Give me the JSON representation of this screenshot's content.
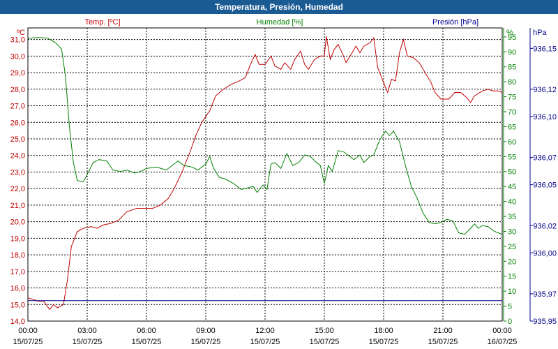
{
  "window": {
    "title": "Temperatura, Presión, Humedad"
  },
  "colors": {
    "temp": "#c00000",
    "humidity": "#008000",
    "pressure": "#00008b",
    "grid": "#000000",
    "title_bg": "#1b5b94"
  },
  "chart_data": {
    "type": "line",
    "title": "Temperatura, Presión, Humedad",
    "grid": true,
    "axes": {
      "temp": {
        "label": "Temp. [ºC]",
        "unit": "ºC",
        "ylim": [
          14.0,
          31.7
        ],
        "ticks": [
          "14,0",
          "15,0",
          "16,0",
          "17,0",
          "18,0",
          "19,0",
          "20,0",
          "21,0",
          "22,0",
          "23,0",
          "24,0",
          "25,0",
          "26,0",
          "27,0",
          "28,0",
          "29,0",
          "30,0",
          "31,0"
        ]
      },
      "humidity": {
        "label": "Humedad [%]",
        "unit": "%",
        "ylim": [
          0,
          98
        ],
        "ticks": [
          "0",
          "5",
          "10",
          "15",
          "20",
          "25",
          "30",
          "35",
          "40",
          "45",
          "50",
          "55",
          "60",
          "65",
          "70",
          "75",
          "80",
          "85",
          "90",
          "95"
        ]
      },
      "pressure": {
        "label": "Presión [hPa]",
        "unit": "hPa",
        "ylim": [
          935.95,
          936.165
        ],
        "ticks": [
          "935,95",
          "935,97",
          "936,00",
          "936,02",
          "936,05",
          "936,07",
          "936,10",
          "936,12",
          "936,15"
        ]
      }
    },
    "x_ticks": [
      {
        "time": "00:00",
        "date": "15/07/25"
      },
      {
        "time": "03:00",
        "date": "15/07/25"
      },
      {
        "time": "06:00",
        "date": "15/07/25"
      },
      {
        "time": "09:00",
        "date": "15/07/25"
      },
      {
        "time": "12:00",
        "date": "15/07/25"
      },
      {
        "time": "15:00",
        "date": "15/07/25"
      },
      {
        "time": "18:00",
        "date": "15/07/25"
      },
      {
        "time": "21:00",
        "date": "15/07/25"
      },
      {
        "time": "00:00",
        "date": "16/07/25"
      }
    ],
    "series": [
      {
        "name": "Temp. [ºC]",
        "axis": "temp",
        "points": [
          [
            0,
            15.4
          ],
          [
            0.3,
            15.3
          ],
          [
            0.5,
            15.2
          ],
          [
            0.8,
            15.2
          ],
          [
            1.1,
            14.7
          ],
          [
            1.3,
            15.0
          ],
          [
            1.5,
            14.8
          ],
          [
            1.8,
            15.0
          ],
          [
            2.0,
            16.5
          ],
          [
            2.2,
            18.5
          ],
          [
            2.5,
            19.4
          ],
          [
            2.8,
            19.6
          ],
          [
            3.2,
            19.7
          ],
          [
            3.5,
            19.6
          ],
          [
            3.8,
            19.8
          ],
          [
            4.2,
            19.9
          ],
          [
            4.6,
            20.1
          ],
          [
            5.0,
            20.6
          ],
          [
            5.5,
            20.8
          ],
          [
            6.0,
            20.8
          ],
          [
            6.3,
            20.8
          ],
          [
            6.7,
            21.0
          ],
          [
            7.1,
            21.4
          ],
          [
            7.4,
            22.0
          ],
          [
            7.8,
            23.0
          ],
          [
            8.2,
            24.2
          ],
          [
            8.5,
            25.2
          ],
          [
            8.8,
            26.0
          ],
          [
            9.2,
            26.7
          ],
          [
            9.5,
            27.6
          ],
          [
            9.9,
            28.0
          ],
          [
            10.3,
            28.3
          ],
          [
            10.7,
            28.5
          ],
          [
            11.0,
            28.7
          ],
          [
            11.3,
            29.6
          ],
          [
            11.5,
            30.1
          ],
          [
            11.7,
            29.5
          ],
          [
            12.0,
            29.5
          ],
          [
            12.3,
            30.0
          ],
          [
            12.5,
            29.4
          ],
          [
            12.8,
            29.2
          ],
          [
            13.0,
            29.6
          ],
          [
            13.3,
            29.2
          ],
          [
            13.5,
            29.8
          ],
          [
            13.8,
            30.3
          ],
          [
            14.0,
            29.5
          ],
          [
            14.2,
            29.2
          ],
          [
            14.5,
            29.8
          ],
          [
            14.8,
            30.0
          ],
          [
            15.0,
            30.0
          ],
          [
            15.1,
            31.2
          ],
          [
            15.3,
            29.8
          ],
          [
            15.5,
            30.4
          ],
          [
            15.7,
            30.7
          ],
          [
            15.9,
            30.2
          ],
          [
            16.1,
            29.6
          ],
          [
            16.4,
            30.2
          ],
          [
            16.6,
            30.6
          ],
          [
            16.8,
            30.2
          ],
          [
            17.0,
            30.6
          ],
          [
            17.3,
            30.8
          ],
          [
            17.5,
            31.1
          ],
          [
            17.7,
            29.3
          ],
          [
            18.0,
            28.4
          ],
          [
            18.2,
            27.8
          ],
          [
            18.4,
            28.6
          ],
          [
            18.6,
            28.5
          ],
          [
            18.8,
            30.2
          ],
          [
            19.0,
            31.0
          ],
          [
            19.2,
            30.0
          ],
          [
            19.5,
            29.9
          ],
          [
            19.8,
            29.6
          ],
          [
            20.1,
            29.0
          ],
          [
            20.4,
            28.4
          ],
          [
            20.6,
            27.8
          ],
          [
            20.9,
            27.4
          ],
          [
            21.3,
            27.4
          ],
          [
            21.6,
            27.8
          ],
          [
            21.9,
            27.8
          ],
          [
            22.2,
            27.5
          ],
          [
            22.4,
            27.2
          ],
          [
            22.6,
            27.6
          ],
          [
            23.0,
            27.9
          ],
          [
            23.3,
            28.0
          ],
          [
            23.5,
            27.9
          ],
          [
            23.8,
            27.9
          ],
          [
            24.0,
            27.8
          ]
        ]
      },
      {
        "name": "Humedad [%]",
        "axis": "humidity",
        "points": [
          [
            0,
            94.5
          ],
          [
            0.5,
            94.8
          ],
          [
            1.0,
            94.6
          ],
          [
            1.4,
            93.0
          ],
          [
            1.7,
            91.0
          ],
          [
            1.9,
            82.0
          ],
          [
            2.1,
            65.0
          ],
          [
            2.3,
            53.0
          ],
          [
            2.5,
            47.0
          ],
          [
            2.8,
            46.5
          ],
          [
            3.0,
            49.0
          ],
          [
            3.3,
            53.0
          ],
          [
            3.6,
            54.0
          ],
          [
            4.0,
            53.5
          ],
          [
            4.3,
            50.5
          ],
          [
            4.7,
            50.0
          ],
          [
            5.0,
            50.5
          ],
          [
            5.4,
            49.5
          ],
          [
            5.7,
            50.0
          ],
          [
            6.0,
            51.0
          ],
          [
            6.5,
            51.5
          ],
          [
            7.0,
            50.5
          ],
          [
            7.3,
            52.0
          ],
          [
            7.6,
            53.5
          ],
          [
            7.9,
            52.0
          ],
          [
            8.3,
            51.5
          ],
          [
            8.6,
            50.5
          ],
          [
            9.0,
            52.5
          ],
          [
            9.2,
            55.0
          ],
          [
            9.4,
            51.0
          ],
          [
            9.7,
            48.0
          ],
          [
            10.0,
            47.5
          ],
          [
            10.4,
            46.0
          ],
          [
            10.8,
            44.0
          ],
          [
            11.1,
            44.5
          ],
          [
            11.4,
            45.0
          ],
          [
            11.6,
            43.0
          ],
          [
            11.9,
            45.5
          ],
          [
            12.1,
            44.0
          ],
          [
            12.3,
            52.5
          ],
          [
            12.5,
            53.0
          ],
          [
            12.8,
            51.0
          ],
          [
            13.1,
            56.0
          ],
          [
            13.4,
            52.0
          ],
          [
            13.7,
            53.0
          ],
          [
            14.0,
            55.5
          ],
          [
            14.3,
            55.0
          ],
          [
            14.6,
            53.0
          ],
          [
            14.8,
            52.0
          ],
          [
            15.0,
            46.0
          ],
          [
            15.2,
            52.0
          ],
          [
            15.4,
            50.0
          ],
          [
            15.7,
            57.0
          ],
          [
            16.0,
            56.5
          ],
          [
            16.3,
            55.0
          ],
          [
            16.5,
            54.0
          ],
          [
            16.8,
            55.5
          ],
          [
            17.0,
            53.0
          ],
          [
            17.3,
            55.0
          ],
          [
            17.5,
            55.5
          ],
          [
            17.8,
            60.5
          ],
          [
            18.1,
            63.5
          ],
          [
            18.3,
            62.0
          ],
          [
            18.5,
            63.5
          ],
          [
            18.8,
            60.0
          ],
          [
            19.1,
            52.0
          ],
          [
            19.4,
            45.0
          ],
          [
            19.7,
            41.0
          ],
          [
            20.0,
            36.0
          ],
          [
            20.3,
            33.0
          ],
          [
            20.6,
            32.5
          ],
          [
            20.9,
            33.0
          ],
          [
            21.2,
            34.0
          ],
          [
            21.5,
            33.5
          ],
          [
            21.8,
            29.5
          ],
          [
            22.1,
            29.0
          ],
          [
            22.4,
            31.0
          ],
          [
            22.6,
            32.5
          ],
          [
            22.8,
            31.0
          ],
          [
            23.0,
            32.0
          ],
          [
            23.3,
            31.5
          ],
          [
            23.6,
            30.0
          ],
          [
            23.8,
            29.5
          ],
          [
            24.0,
            29.0
          ]
        ]
      },
      {
        "name": "Presión [hPa]",
        "axis": "pressure",
        "points": [
          [
            0,
            935.965
          ],
          [
            24,
            935.965
          ]
        ]
      }
    ]
  }
}
